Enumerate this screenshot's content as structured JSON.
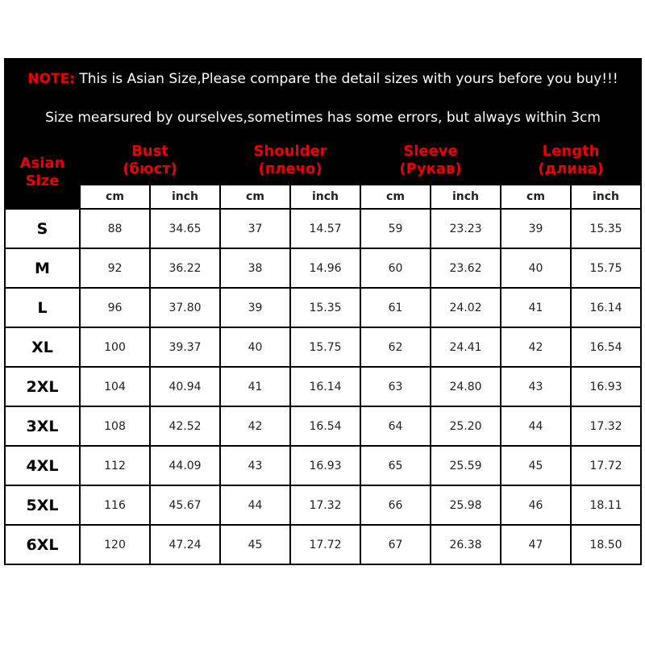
{
  "note": {
    "label": "NOTE:",
    "text": "This is Asian Size,Please compare the detail sizes with yours before you buy!!!",
    "line2": "Size mearsured by ourselves,sometimes has some errors, but always within 3cm"
  },
  "header": {
    "size_label": "Asian Size",
    "groups": [
      {
        "name": "Bust",
        "translation": "(бюст)"
      },
      {
        "name": "Shoulder",
        "translation": "(плечо)"
      },
      {
        "name": "Sleeve",
        "translation": "(Рукав)"
      },
      {
        "name": "Length",
        "translation": "(длина)"
      }
    ],
    "units": [
      "cm",
      "inch",
      "cm",
      "inch",
      "cm",
      "inch",
      "cm",
      "inch"
    ]
  },
  "table": {
    "rows": [
      [
        "S",
        "88",
        "34.65",
        "37",
        "14.57",
        "59",
        "23.23",
        "39",
        "15.35"
      ],
      [
        "M",
        "92",
        "36.22",
        "38",
        "14.96",
        "60",
        "23.62",
        "40",
        "15.75"
      ],
      [
        "L",
        "96",
        "37.80",
        "39",
        "15.35",
        "61",
        "24.02",
        "41",
        "16.14"
      ],
      [
        "XL",
        "100",
        "39.37",
        "40",
        "15.75",
        "62",
        "24.41",
        "42",
        "16.54"
      ],
      [
        "2XL",
        "104",
        "40.94",
        "41",
        "16.14",
        "63",
        "24.80",
        "43",
        "16.93"
      ],
      [
        "3XL",
        "108",
        "42.52",
        "42",
        "16.54",
        "64",
        "25.20",
        "44",
        "17.32"
      ],
      [
        "4XL",
        "112",
        "44.09",
        "43",
        "16.93",
        "65",
        "25.59",
        "45",
        "17.72"
      ],
      [
        "5XL",
        "116",
        "45.67",
        "44",
        "17.32",
        "66",
        "25.98",
        "46",
        "18.11"
      ],
      [
        "6XL",
        "120",
        "47.24",
        "45",
        "17.72",
        "67",
        "26.38",
        "47",
        "18.50"
      ]
    ]
  }
}
